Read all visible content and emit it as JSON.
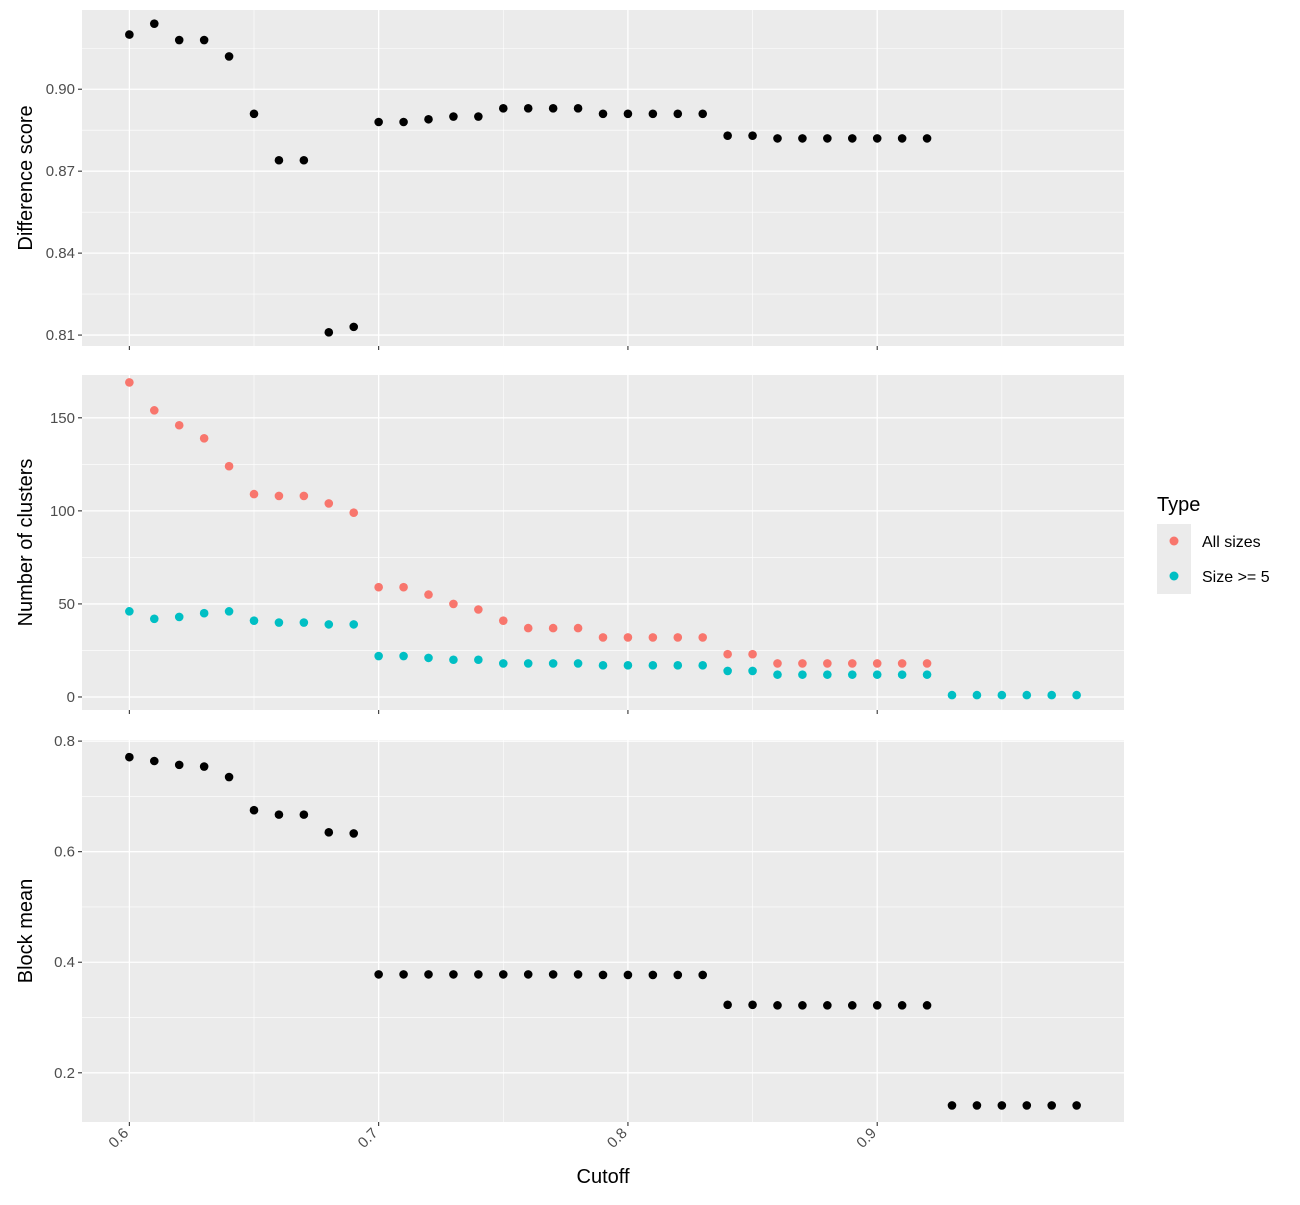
{
  "chart_data": [
    {
      "type": "scatter",
      "ylabel": "Difference score",
      "xlim": [
        0.581,
        0.999
      ],
      "ylim": [
        0.806,
        0.929
      ],
      "yticks": [
        0.81,
        0.84,
        0.87,
        0.9
      ],
      "yticklabels": [
        "0.81",
        "0.84",
        "0.87",
        "0.90"
      ],
      "grid": true,
      "series": [
        {
          "color": "#000000",
          "x": [
            0.6,
            0.61,
            0.62,
            0.63,
            0.64,
            0.65,
            0.66,
            0.67,
            0.68,
            0.69,
            0.7,
            0.71,
            0.72,
            0.73,
            0.74,
            0.75,
            0.76,
            0.77,
            0.78,
            0.79,
            0.8,
            0.81,
            0.82,
            0.83,
            0.84,
            0.85,
            0.86,
            0.87,
            0.88,
            0.89,
            0.9,
            0.91,
            0.92
          ],
          "y": [
            0.92,
            0.924,
            0.918,
            0.918,
            0.912,
            0.891,
            0.874,
            0.874,
            0.811,
            0.813,
            0.888,
            0.888,
            0.889,
            0.89,
            0.89,
            0.893,
            0.893,
            0.893,
            0.893,
            0.891,
            0.891,
            0.891,
            0.891,
            0.891,
            0.883,
            0.883,
            0.882,
            0.882,
            0.882,
            0.882,
            0.882,
            0.882,
            0.882
          ]
        }
      ]
    },
    {
      "type": "scatter",
      "ylabel": "Number of clusters",
      "xlim": [
        0.581,
        0.999
      ],
      "ylim": [
        -7,
        173
      ],
      "yticks": [
        0,
        50,
        100,
        150
      ],
      "yticklabels": [
        "0",
        "50",
        "100",
        "150"
      ],
      "grid": true,
      "legend": {
        "title": "Type",
        "position": "right",
        "items": [
          "All sizes",
          "Size >= 5"
        ]
      },
      "series": [
        {
          "name": "All sizes",
          "color": "#F8766D",
          "x": [
            0.6,
            0.61,
            0.62,
            0.63,
            0.64,
            0.65,
            0.66,
            0.67,
            0.68,
            0.69,
            0.7,
            0.71,
            0.72,
            0.73,
            0.74,
            0.75,
            0.76,
            0.77,
            0.78,
            0.79,
            0.8,
            0.81,
            0.82,
            0.83,
            0.84,
            0.85,
            0.86,
            0.87,
            0.88,
            0.89,
            0.9,
            0.91,
            0.92
          ],
          "y": [
            169,
            154,
            146,
            139,
            124,
            109,
            108,
            108,
            104,
            99,
            59,
            59,
            55,
            50,
            47,
            41,
            37,
            37,
            37,
            32,
            32,
            32,
            32,
            32,
            23,
            23,
            18,
            18,
            18,
            18,
            18,
            18,
            18
          ]
        },
        {
          "name": "Size >= 5",
          "color": "#00BFC4",
          "x": [
            0.6,
            0.61,
            0.62,
            0.63,
            0.64,
            0.65,
            0.66,
            0.67,
            0.68,
            0.69,
            0.7,
            0.71,
            0.72,
            0.73,
            0.74,
            0.75,
            0.76,
            0.77,
            0.78,
            0.79,
            0.8,
            0.81,
            0.82,
            0.83,
            0.84,
            0.85,
            0.86,
            0.87,
            0.88,
            0.89,
            0.9,
            0.91,
            0.92,
            0.93,
            0.94,
            0.95,
            0.96,
            0.97,
            0.98
          ],
          "y": [
            46,
            42,
            43,
            45,
            46,
            41,
            40,
            40,
            39,
            39,
            22,
            22,
            21,
            20,
            20,
            18,
            18,
            18,
            18,
            17,
            17,
            17,
            17,
            17,
            14,
            14,
            12,
            12,
            12,
            12,
            12,
            12,
            12,
            1,
            1,
            1,
            1,
            1,
            1
          ]
        }
      ]
    },
    {
      "type": "scatter",
      "ylabel": "Block mean",
      "xlabel": "Cutoff",
      "xlim": [
        0.581,
        0.999
      ],
      "ylim": [
        0.111,
        0.802
      ],
      "xticks": [
        0.6,
        0.7,
        0.8,
        0.9
      ],
      "xticklabels": [
        "0.6",
        "0.7",
        "0.8",
        "0.9"
      ],
      "yticks": [
        0.2,
        0.4,
        0.6,
        0.8
      ],
      "yticklabels": [
        "0.2",
        "0.4",
        "0.6",
        "0.8"
      ],
      "grid": true,
      "series": [
        {
          "color": "#000000",
          "x": [
            0.6,
            0.61,
            0.62,
            0.63,
            0.64,
            0.65,
            0.66,
            0.67,
            0.68,
            0.69,
            0.7,
            0.71,
            0.72,
            0.73,
            0.74,
            0.75,
            0.76,
            0.77,
            0.78,
            0.79,
            0.8,
            0.81,
            0.82,
            0.83,
            0.84,
            0.85,
            0.86,
            0.87,
            0.88,
            0.89,
            0.9,
            0.91,
            0.92,
            0.93,
            0.94,
            0.95,
            0.96,
            0.97,
            0.98
          ],
          "y": [
            0.771,
            0.764,
            0.757,
            0.754,
            0.735,
            0.675,
            0.667,
            0.667,
            0.635,
            0.633,
            0.378,
            0.378,
            0.378,
            0.378,
            0.378,
            0.378,
            0.378,
            0.378,
            0.378,
            0.377,
            0.377,
            0.377,
            0.377,
            0.377,
            0.323,
            0.323,
            0.322,
            0.322,
            0.322,
            0.322,
            0.322,
            0.322,
            0.322,
            0.141,
            0.141,
            0.141,
            0.141,
            0.141,
            0.141
          ]
        }
      ]
    }
  ]
}
